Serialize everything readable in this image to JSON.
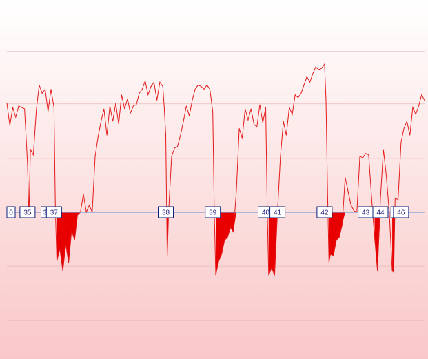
{
  "chart_data": {
    "type": "area",
    "title": "",
    "xlabel": "",
    "ylabel": "",
    "baseline": 0,
    "ylim": [
      -160,
      240
    ],
    "grid": true,
    "legend": "none",
    "colors": {
      "line": "#e31a1a",
      "fill": "#e80000",
      "baseline": "#7c9dd8",
      "marker_border": "#0b1f7a",
      "background_top": "#ffffff",
      "background_bottom": "#f9c7c7"
    },
    "series": [
      {
        "values": [
          [
            0,
            156
          ],
          [
            1,
            124
          ],
          [
            2,
            150
          ],
          [
            3,
            136
          ],
          [
            4,
            152
          ],
          [
            5,
            150
          ],
          [
            6,
            148
          ],
          [
            7,
            70
          ],
          [
            7.5,
            -6
          ],
          [
            8,
            90
          ],
          [
            9,
            82
          ],
          [
            10,
            146
          ],
          [
            11,
            182
          ],
          [
            12,
            170
          ],
          [
            13,
            176
          ],
          [
            14,
            144
          ],
          [
            15,
            176
          ],
          [
            16,
            150
          ],
          [
            16.5,
            0
          ],
          [
            17,
            -70
          ],
          [
            18,
            -52
          ],
          [
            19,
            -84
          ],
          [
            20,
            -46
          ],
          [
            21,
            -72
          ],
          [
            22,
            -26
          ],
          [
            23,
            -40
          ],
          [
            24,
            -4
          ],
          [
            25,
            0
          ],
          [
            26,
            26
          ],
          [
            27,
            0
          ],
          [
            28,
            10
          ],
          [
            29,
            0
          ],
          [
            30,
            80
          ],
          [
            31,
            108
          ],
          [
            32,
            130
          ],
          [
            33,
            148
          ],
          [
            34,
            110
          ],
          [
            35,
            152
          ],
          [
            36,
            130
          ],
          [
            37,
            156
          ],
          [
            38,
            126
          ],
          [
            39,
            168
          ],
          [
            40,
            148
          ],
          [
            41,
            162
          ],
          [
            42,
            142
          ],
          [
            43,
            152
          ],
          [
            44,
            154
          ],
          [
            45,
            170
          ],
          [
            46,
            176
          ],
          [
            47,
            188
          ],
          [
            48,
            168
          ],
          [
            49,
            180
          ],
          [
            50,
            186
          ],
          [
            51,
            160
          ],
          [
            52,
            186
          ],
          [
            53,
            180
          ],
          [
            53.5,
            150
          ],
          [
            54,
            110
          ],
          [
            54.5,
            -64
          ],
          [
            55,
            2
          ],
          [
            56,
            80
          ],
          [
            57,
            92
          ],
          [
            58,
            94
          ],
          [
            59,
            110
          ],
          [
            60,
            130
          ],
          [
            61,
            152
          ],
          [
            62,
            138
          ],
          [
            63,
            160
          ],
          [
            64,
            176
          ],
          [
            65,
            182
          ],
          [
            66,
            180
          ],
          [
            67,
            176
          ],
          [
            68,
            182
          ],
          [
            69,
            176
          ],
          [
            70,
            144
          ],
          [
            70.5,
            0
          ],
          [
            71,
            -90
          ],
          [
            72,
            -70
          ],
          [
            73,
            -60
          ],
          [
            74,
            -40
          ],
          [
            75,
            -36
          ],
          [
            76,
            -22
          ],
          [
            77,
            -28
          ],
          [
            78,
            30
          ],
          [
            79,
            120
          ],
          [
            80,
            106
          ],
          [
            81,
            148
          ],
          [
            82,
            132
          ],
          [
            83,
            148
          ],
          [
            84,
            126
          ],
          [
            85,
            122
          ],
          [
            86,
            154
          ],
          [
            87,
            128
          ],
          [
            88,
            150
          ],
          [
            88.5,
            6
          ],
          [
            89,
            -90
          ],
          [
            90,
            -80
          ],
          [
            91,
            -90
          ],
          [
            92,
            0
          ],
          [
            93,
            80
          ],
          [
            94,
            130
          ],
          [
            95,
            110
          ],
          [
            96,
            150
          ],
          [
            97,
            140
          ],
          [
            98,
            168
          ],
          [
            99,
            164
          ],
          [
            100,
            170
          ],
          [
            101,
            182
          ],
          [
            102,
            194
          ],
          [
            103,
            186
          ],
          [
            104,
            198
          ],
          [
            105,
            208
          ],
          [
            106,
            204
          ],
          [
            107,
            206
          ],
          [
            108,
            212
          ],
          [
            108.5,
            160
          ],
          [
            109,
            30
          ],
          [
            109.5,
            -72
          ],
          [
            110,
            -60
          ],
          [
            111,
            -62
          ],
          [
            112,
            -40
          ],
          [
            113,
            -36
          ],
          [
            114,
            -18
          ],
          [
            115,
            50
          ],
          [
            116,
            30
          ],
          [
            117,
            10
          ],
          [
            118,
            2
          ],
          [
            119,
            0
          ],
          [
            120,
            80
          ],
          [
            121,
            78
          ],
          [
            122,
            84
          ],
          [
            123,
            82
          ],
          [
            124,
            20
          ],
          [
            125,
            -36
          ],
          [
            126,
            -84
          ],
          [
            127,
            20
          ],
          [
            128,
            90
          ],
          [
            129,
            52
          ],
          [
            130,
            0
          ],
          [
            131,
            -84
          ],
          [
            131.5,
            -86
          ],
          [
            132,
            20
          ],
          [
            133,
            18
          ],
          [
            134,
            100
          ],
          [
            135,
            120
          ],
          [
            136,
            130
          ],
          [
            137,
            110
          ],
          [
            138,
            150
          ],
          [
            139,
            140
          ],
          [
            140,
            152
          ],
          [
            141,
            168
          ],
          [
            142,
            160
          ]
        ]
      }
    ],
    "markers": [
      {
        "label": "0",
        "x": 0
      },
      {
        "label": "35",
        "x": 7
      },
      {
        "label": "3",
        "x": 13
      },
      {
        "label": "37",
        "x": 16
      },
      {
        "label": "38",
        "x": 54
      },
      {
        "label": "39",
        "x": 70
      },
      {
        "label": "40",
        "x": 88
      },
      {
        "label": "41",
        "x": 92
      },
      {
        "label": "42",
        "x": 108
      },
      {
        "label": "43",
        "x": 122
      },
      {
        "label": "44",
        "x": 127
      },
      {
        "label": "4",
        "x": 132
      },
      {
        "label": "46",
        "x": 134
      }
    ]
  }
}
